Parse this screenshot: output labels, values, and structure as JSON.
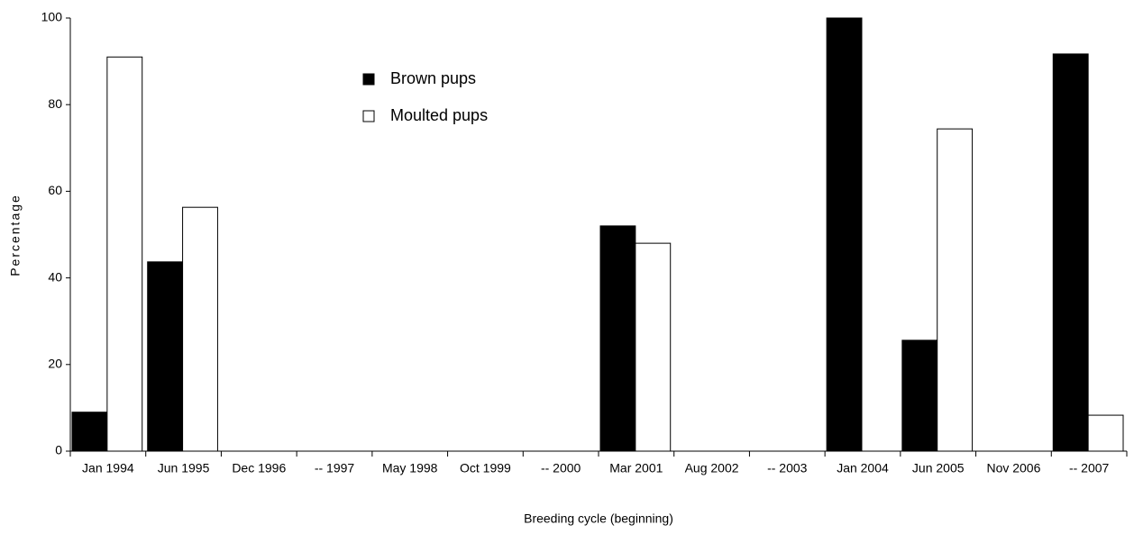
{
  "chart_data": {
    "type": "bar",
    "x_label": "Breeding cycle (beginning)",
    "y_label": "Percentage",
    "categories": [
      "Jan 1994",
      "Jun 1995",
      "Dec 1996",
      "-- 1997",
      "May 1998",
      "Oct 1999",
      "-- 2000",
      "Mar 2001",
      "Aug 2002",
      "-- 2003",
      "Jan 2004",
      "Jun 2005",
      "Nov 2006",
      "-- 2007"
    ],
    "series": [
      {
        "name": "Brown pups",
        "color": "#000000",
        "values": [
          9,
          43.7,
          null,
          null,
          null,
          null,
          null,
          52,
          null,
          null,
          100,
          25.6,
          null,
          91.7
        ]
      },
      {
        "name": "Moulted pups",
        "color": "#ffffff",
        "values": [
          91,
          56.3,
          null,
          null,
          null,
          null,
          null,
          48,
          null,
          null,
          0,
          74.4,
          null,
          8.3
        ]
      }
    ],
    "ylim": [
      0,
      100
    ],
    "yticks": [
      0,
      20,
      40,
      60,
      80,
      100
    ]
  }
}
